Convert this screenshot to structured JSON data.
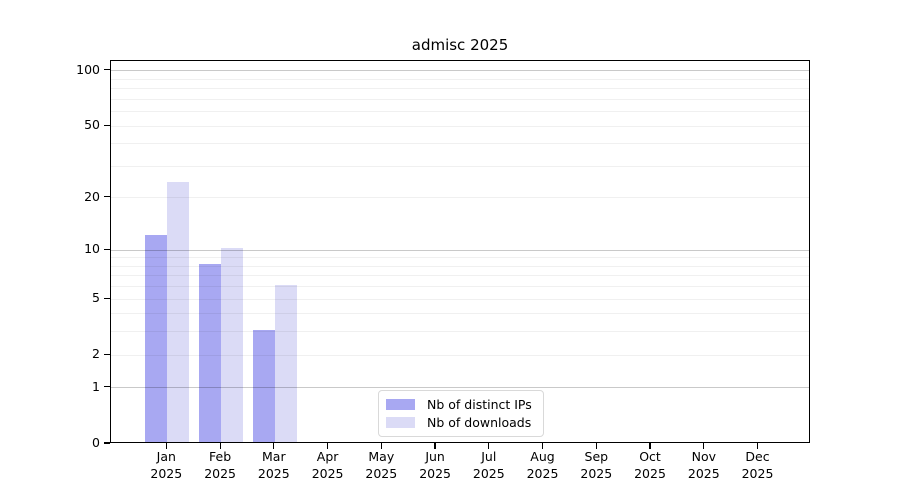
{
  "page": {
    "background": "#ffffff"
  },
  "chart_data": {
    "type": "bar",
    "title": "admisc 2025",
    "categories": [
      "Jan",
      "Feb",
      "Mar",
      "Apr",
      "May",
      "Jun",
      "Jul",
      "Aug",
      "Sep",
      "Oct",
      "Nov",
      "Dec"
    ],
    "category_year": "2025",
    "series": [
      {
        "name": "Nb of distinct IPs",
        "color": "#a8a8f2",
        "values": [
          12,
          8,
          3,
          0,
          0,
          0,
          0,
          0,
          0,
          0,
          0,
          0
        ]
      },
      {
        "name": "Nb of downloads",
        "color": "#dbdbf6",
        "values": [
          24,
          10,
          6,
          0,
          0,
          0,
          0,
          0,
          0,
          0,
          0,
          0
        ]
      }
    ],
    "xlabel": "",
    "ylabel": "",
    "yscale": "log(1+x)",
    "ylim": [
      0,
      100
    ],
    "ytick_values": [
      0,
      1,
      2,
      5,
      10,
      20,
      50,
      100
    ],
    "ytick_labels": [
      "0",
      "1",
      "2",
      "5",
      "10",
      "20",
      "50",
      "100"
    ],
    "major_gridline_values": [
      1,
      10,
      100
    ],
    "minor_gridline_values": [
      2,
      3,
      4,
      5,
      6,
      7,
      8,
      9,
      20,
      30,
      40,
      50,
      60,
      70,
      80,
      90
    ],
    "grid": "on",
    "legend_position": "lower center inside",
    "colors": {
      "axis": "#000000",
      "gridline_major": "#c9c9c9",
      "gridline_minor": "#f0f0f0",
      "bar_distinct_ips": "#a8a8f2",
      "bar_downloads": "#dbdbf6",
      "legend_border": "#d9d9d9"
    }
  }
}
